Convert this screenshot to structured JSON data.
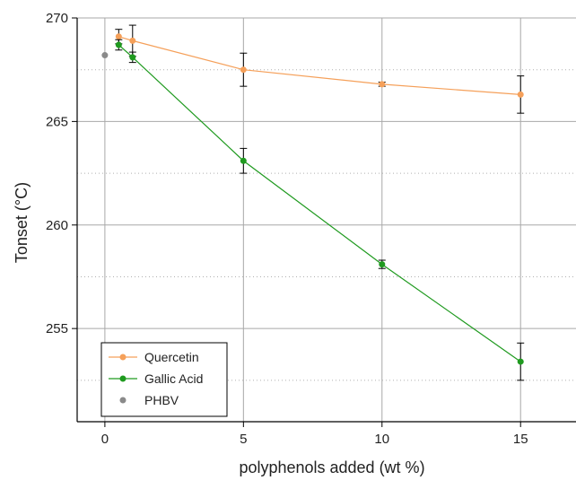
{
  "chart_data": {
    "type": "line",
    "xlabel": "polyphenols added (wt %)",
    "ylabel": "Tonset (°C)",
    "xlim": [
      -1,
      17
    ],
    "ylim": [
      250.5,
      270
    ],
    "xticks": [
      0,
      5,
      10,
      15
    ],
    "yticks": [
      255,
      260,
      265,
      270
    ],
    "grid": true,
    "legend_position": "bottom-left",
    "series": [
      {
        "name": "Quercetin",
        "color": "#F5A05A",
        "x": [
          0.5,
          1,
          5,
          10,
          15
        ],
        "y": [
          269.1,
          268.9,
          267.5,
          266.8,
          266.3
        ],
        "err": [
          0.35,
          0.75,
          0.8,
          0.1,
          0.9
        ]
      },
      {
        "name": "Gallic Acid",
        "color": "#1F9A1F",
        "x": [
          0.5,
          1,
          5,
          10,
          15
        ],
        "y": [
          268.7,
          268.1,
          263.1,
          258.1,
          253.4
        ],
        "err": [
          0.25,
          0.25,
          0.6,
          0.2,
          0.9
        ]
      },
      {
        "name": "PHBV",
        "color": "#8A8A8A",
        "x": [
          0
        ],
        "y": [
          268.2
        ],
        "err": [
          0
        ]
      }
    ]
  }
}
